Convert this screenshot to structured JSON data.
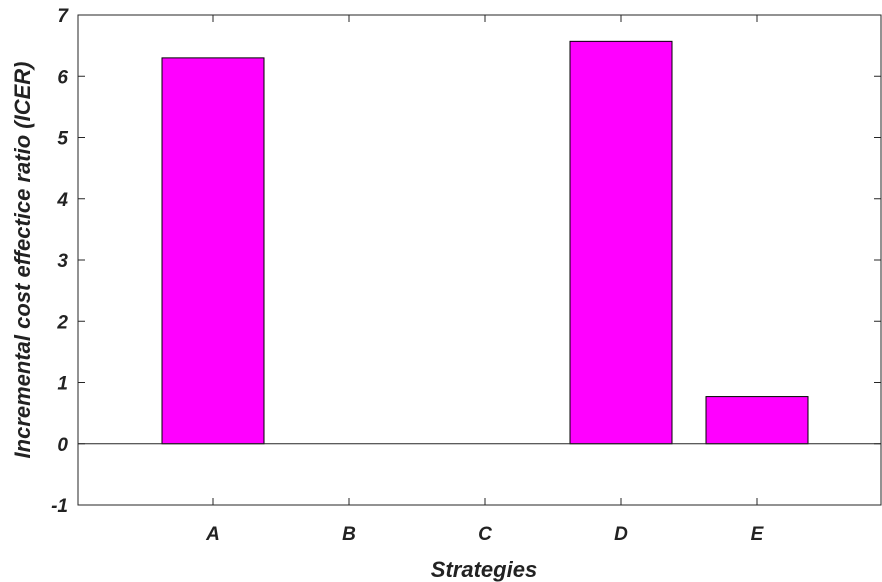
{
  "chart_data": {
    "type": "bar",
    "categories": [
      "A",
      "B",
      "C",
      "D",
      "E"
    ],
    "values": [
      6.3,
      0,
      0,
      6.57,
      0.77
    ],
    "xlabel": "Strategies",
    "ylabel": "Incremental cost effectice ratio (ICER)",
    "ylim": [
      -1,
      7
    ],
    "yticks": [
      -1,
      0,
      1,
      2,
      3,
      4,
      5,
      6,
      7
    ],
    "bar_color": "#FF00FF",
    "grid": false,
    "baseline_at_zero": true
  }
}
